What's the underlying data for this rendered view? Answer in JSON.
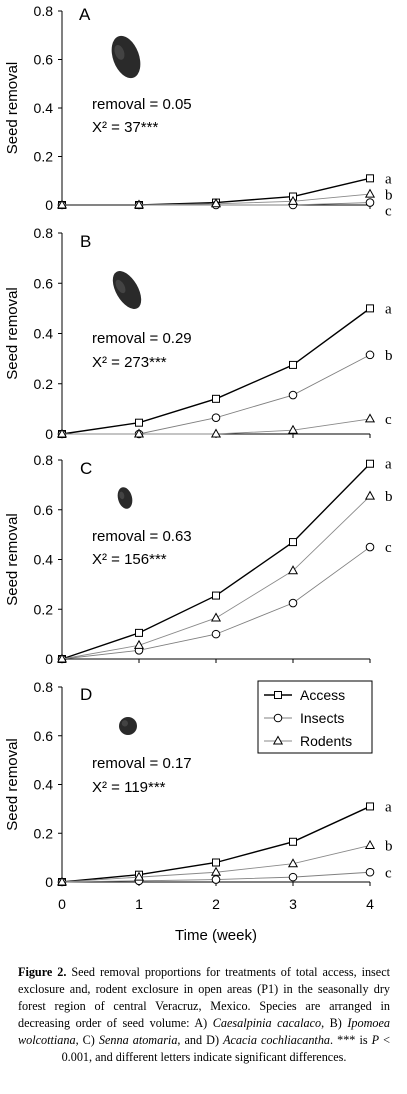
{
  "chart_data": [
    {
      "type": "line",
      "panel": "A",
      "ylabel": "Seed removal",
      "ylim": [
        0,
        0.8
      ],
      "yticks": [
        "0",
        "0.2",
        "0.4",
        "0.6",
        "0.8"
      ],
      "x": [
        0,
        1,
        2,
        3,
        4
      ],
      "series": [
        {
          "name": "Access",
          "marker": "square",
          "values": [
            0,
            0,
            0.01,
            0.035,
            0.11
          ],
          "letter": "a"
        },
        {
          "name": "Insects",
          "marker": "circle",
          "values": [
            0,
            0,
            0,
            0,
            0.01
          ],
          "letter": "c"
        },
        {
          "name": "Rodents",
          "marker": "triangle",
          "values": [
            0,
            0,
            0.005,
            0.015,
            0.045
          ],
          "letter": "b"
        }
      ],
      "annotation": [
        "removal  = 0.05",
        "X² = 37***"
      ],
      "seed_icon": "seed-icon"
    },
    {
      "type": "line",
      "panel": "B",
      "ylabel": "Seed removal",
      "ylim": [
        0,
        0.8
      ],
      "yticks": [
        "0",
        "0.2",
        "0.4",
        "0.6",
        "0.8"
      ],
      "x": [
        0,
        1,
        2,
        3,
        4
      ],
      "series": [
        {
          "name": "Access",
          "marker": "square",
          "values": [
            0,
            0.045,
            0.14,
            0.275,
            0.5
          ],
          "letter": "a"
        },
        {
          "name": "Insects",
          "marker": "circle",
          "values": [
            0,
            0,
            0.065,
            0.155,
            0.315
          ],
          "letter": "b"
        },
        {
          "name": "Rodents",
          "marker": "triangle",
          "values": [
            0,
            0,
            0,
            0.015,
            0.06
          ],
          "letter": "c"
        }
      ],
      "annotation": [
        "removal = 0.29",
        "X² = 273***"
      ],
      "seed_icon": "seed-icon"
    },
    {
      "type": "line",
      "panel": "C",
      "ylabel": "Seed removal",
      "ylim": [
        0,
        0.8
      ],
      "yticks": [
        "0",
        "0.2",
        "0.4",
        "0.6",
        "0.8"
      ],
      "x": [
        0,
        1,
        2,
        3,
        4
      ],
      "series": [
        {
          "name": "Access",
          "marker": "square",
          "values": [
            0,
            0.105,
            0.255,
            0.47,
            0.785
          ],
          "letter": "a"
        },
        {
          "name": "Insects",
          "marker": "circle",
          "values": [
            0,
            0.035,
            0.1,
            0.225,
            0.45
          ],
          "letter": "c"
        },
        {
          "name": "Rodents",
          "marker": "triangle",
          "values": [
            0,
            0.055,
            0.165,
            0.355,
            0.655
          ],
          "letter": "b"
        }
      ],
      "annotation": [
        "removal = 0.63",
        "X² = 156***"
      ],
      "seed_icon": "seed-icon"
    },
    {
      "type": "line",
      "panel": "D",
      "ylabel": "Seed removal",
      "xlabel": "Time (week)",
      "ylim": [
        0,
        0.8
      ],
      "yticks": [
        "0",
        "0.2",
        "0.4",
        "0.6",
        "0.8"
      ],
      "xticks": [
        "0",
        "1",
        "2",
        "3",
        "4"
      ],
      "x": [
        0,
        1,
        2,
        3,
        4
      ],
      "series": [
        {
          "name": "Access",
          "marker": "square",
          "values": [
            0,
            0.03,
            0.08,
            0.165,
            0.31
          ],
          "letter": "a"
        },
        {
          "name": "Insects",
          "marker": "circle",
          "values": [
            0,
            0.005,
            0.01,
            0.02,
            0.04
          ],
          "letter": "c"
        },
        {
          "name": "Rodents",
          "marker": "triangle",
          "values": [
            0,
            0.02,
            0.04,
            0.075,
            0.15
          ],
          "letter": "b"
        }
      ],
      "annotation": [
        "removal = 0.17",
        "X² = 119***"
      ],
      "legend": [
        "Access",
        "Insects",
        "Rodents"
      ],
      "legend_position": "top-right",
      "seed_icon": "seed-icon"
    }
  ],
  "caption": {
    "label": "Figure 2.",
    "segments": [
      {
        "t": " Seed removal proportions for treatments of total access, insect exclosure and, rodent exclosure in open areas (P1) in the seasonally dry forest region of central Veracruz, Mexico. Species are arranged in decreasing order of seed volume: A) ",
        "i": false
      },
      {
        "t": "Caesalpinia cacalaco",
        "i": true
      },
      {
        "t": ", B) ",
        "i": false
      },
      {
        "t": "Ipomoea wolcottiana",
        "i": true
      },
      {
        "t": ", C) ",
        "i": false
      },
      {
        "t": "Senna atomaria",
        "i": true
      },
      {
        "t": ", and D) ",
        "i": false
      },
      {
        "t": "Acacia cochliacantha",
        "i": true
      },
      {
        "t": ". *** is ",
        "i": false
      },
      {
        "t": "P",
        "i": true
      },
      {
        "t": " < 0.001, and different letters indicate significant differences.",
        "i": false
      }
    ]
  }
}
